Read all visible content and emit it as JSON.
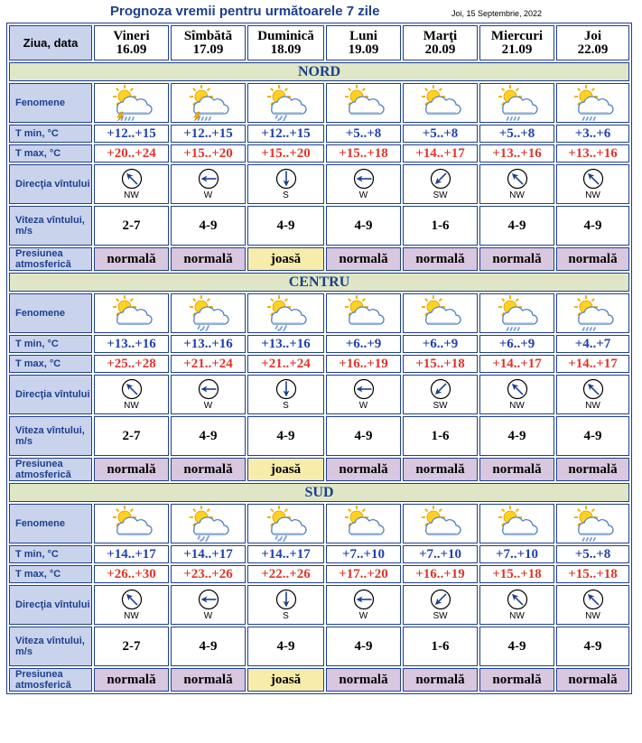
{
  "title": "Prognoza vremii pentru următoarele 7 zile",
  "date": "Joi, 15 Septembrie, 2022",
  "header_label": "Ziua, data",
  "days": [
    {
      "name": "Vineri",
      "date": "16.09"
    },
    {
      "name": "Sîmbătă",
      "date": "17.09"
    },
    {
      "name": "Duminică",
      "date": "18.09"
    },
    {
      "name": "Luni",
      "date": "19.09"
    },
    {
      "name": "Marţi",
      "date": "20.09"
    },
    {
      "name": "Miercuri",
      "date": "21.09"
    },
    {
      "name": "Joi",
      "date": "22.09"
    }
  ],
  "row_labels": {
    "phenomena": "Fenomene",
    "tmin": "T min, °C",
    "tmax": "T max, °C",
    "wind_dir": "Direcţia vîntului",
    "wind_speed": "Viteza vîntului, m/s",
    "pressure": "Presiunea atmosferică"
  },
  "regions": [
    {
      "name": "NORD",
      "icons": [
        "cloud-sun-rain-lightning-icon",
        "cloud-sun-rain-lightning-icon",
        "cloud-sun-rain-icon",
        "cloud-sun-icon",
        "cloud-sun-icon",
        "cloud-sun-rain-light-icon",
        "cloud-sun-rain-light-icon"
      ],
      "tmin": [
        "+12..+15",
        "+12..+15",
        "+12..+15",
        "+5..+8",
        "+5..+8",
        "+5..+8",
        "+3..+6"
      ],
      "tmax": [
        "+20..+24",
        "+15..+20",
        "+15..+20",
        "+15..+18",
        "+14..+17",
        "+13..+16",
        "+13..+16"
      ],
      "wind_dir": [
        "NW",
        "W",
        "S",
        "W",
        "SW",
        "NW",
        "NW"
      ],
      "wind_speed": [
        "2-7",
        "4-9",
        "4-9",
        "4-9",
        "1-6",
        "4-9",
        "4-9"
      ],
      "pressure": [
        "normală",
        "normală",
        "joasă",
        "normală",
        "normală",
        "normală",
        "normală"
      ]
    },
    {
      "name": "CENTRU",
      "icons": [
        "cloud-sun-icon",
        "cloud-sun-rain-icon",
        "cloud-sun-rain-icon",
        "cloud-sun-icon",
        "cloud-sun-icon",
        "cloud-sun-rain-light-icon",
        "cloud-sun-rain-light-icon"
      ],
      "tmin": [
        "+13..+16",
        "+13..+16",
        "+13..+16",
        "+6..+9",
        "+6..+9",
        "+6..+9",
        "+4..+7"
      ],
      "tmax": [
        "+25..+28",
        "+21..+24",
        "+21..+24",
        "+16..+19",
        "+15..+18",
        "+14..+17",
        "+14..+17"
      ],
      "wind_dir": [
        "NW",
        "W",
        "S",
        "W",
        "SW",
        "NW",
        "NW"
      ],
      "wind_speed": [
        "2-7",
        "4-9",
        "4-9",
        "4-9",
        "1-6",
        "4-9",
        "4-9"
      ],
      "pressure": [
        "normală",
        "normală",
        "joasă",
        "normală",
        "normală",
        "normală",
        "normală"
      ]
    },
    {
      "name": "SUD",
      "icons": [
        "cloud-sun-icon",
        "cloud-sun-rain-icon",
        "cloud-sun-rain-icon",
        "cloud-sun-icon",
        "cloud-sun-icon",
        "cloud-sun-icon",
        "cloud-sun-rain-light-icon"
      ],
      "tmin": [
        "+14..+17",
        "+14..+17",
        "+14..+17",
        "+7..+10",
        "+7..+10",
        "+7..+10",
        "+5..+8"
      ],
      "tmax": [
        "+26..+30",
        "+23..+26",
        "+22..+26",
        "+17..+20",
        "+16..+19",
        "+15..+18",
        "+15..+18"
      ],
      "wind_dir": [
        "NW",
        "W",
        "S",
        "W",
        "SW",
        "NW",
        "NW"
      ],
      "wind_speed": [
        "2-7",
        "4-9",
        "4-9",
        "4-9",
        "1-6",
        "4-9",
        "4-9"
      ],
      "pressure": [
        "normală",
        "normală",
        "joasă",
        "normală",
        "normală",
        "normală",
        "normală"
      ]
    }
  ],
  "colors": {
    "label_bg": "#c9d3ec",
    "region_bg": "#dfe6c5",
    "pressure_normal_bg": "#d9c7df",
    "pressure_low_bg": "#f7eca9",
    "tmin_text": "#1f3fae",
    "tmax_text": "#e0342c",
    "title_text": "#1d3f8f"
  }
}
